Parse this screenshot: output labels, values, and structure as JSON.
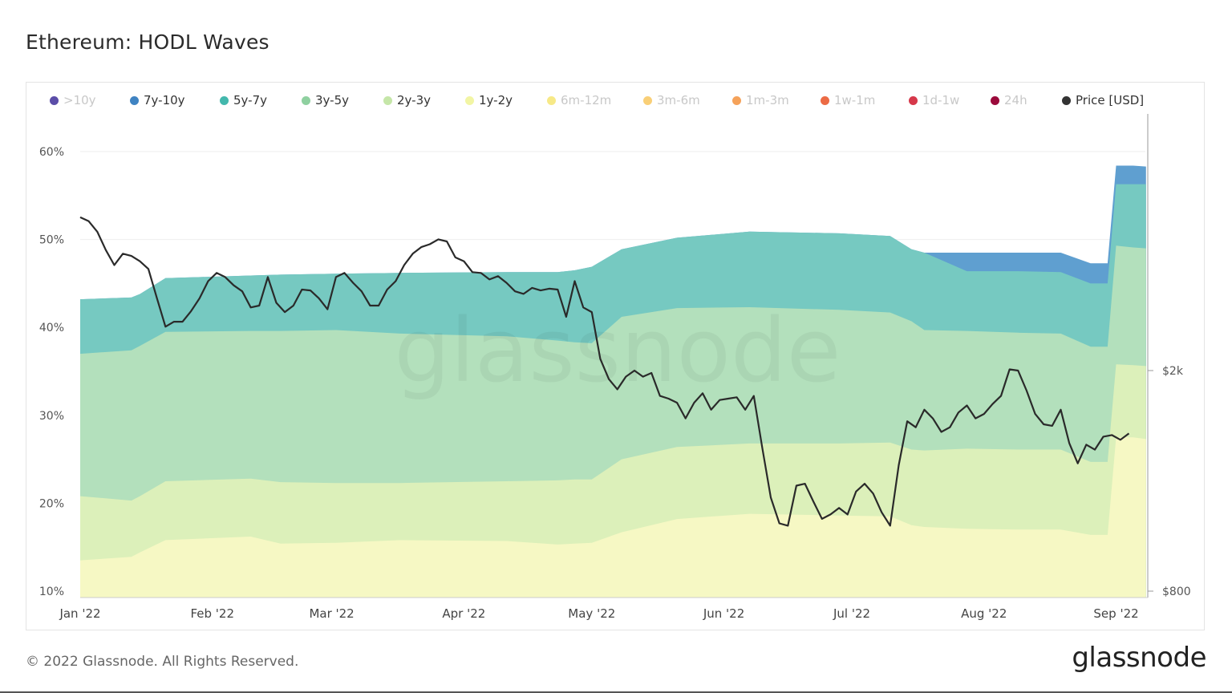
{
  "header": {
    "title": "Ethereum: HODL Waves"
  },
  "footer": {
    "copyright": "© 2022 Glassnode. All Rights Reserved.",
    "brand": "glassnode",
    "watermark": "glassnode"
  },
  "legend": [
    {
      "label": ">10y",
      "color": "#5b4da8",
      "active": false
    },
    {
      "label": "7y-10y",
      "color": "#3f83c2",
      "active": true
    },
    {
      "label": "5y-7y",
      "color": "#43b8ad",
      "active": true
    },
    {
      "label": "3y-5y",
      "color": "#8fd0a0",
      "active": true
    },
    {
      "label": "2y-3y",
      "color": "#c5e6a8",
      "active": true
    },
    {
      "label": "1y-2y",
      "color": "#f2f5a4",
      "active": true
    },
    {
      "label": "6m-12m",
      "color": "#f7e987",
      "active": false
    },
    {
      "label": "3m-6m",
      "color": "#f9cf77",
      "active": false
    },
    {
      "label": "1m-3m",
      "color": "#f5a25a",
      "active": false
    },
    {
      "label": "1w-1m",
      "color": "#ec6b45",
      "active": false
    },
    {
      "label": "1d-1w",
      "color": "#d6384a",
      "active": false
    },
    {
      "label": "24h",
      "color": "#9b0a3b",
      "active": false
    },
    {
      "label": "Price [USD]",
      "color": "#333333",
      "active": true
    }
  ],
  "chart_data": {
    "type": "area",
    "stacked": true,
    "x_ticks": [
      "Jan '22",
      "Feb '22",
      "Mar '22",
      "Apr '22",
      "May '22",
      "Jun '22",
      "Jul '22",
      "Aug '22",
      "Sep '22"
    ],
    "x_tick_days": [
      0,
      31,
      59,
      90,
      120,
      151,
      181,
      212,
      243
    ],
    "y_left": {
      "ticks": [
        "10%",
        "20%",
        "30%",
        "40%",
        "50%",
        "60%"
      ],
      "tick_values": [
        10,
        20,
        30,
        40,
        50,
        60
      ],
      "range": [
        10,
        60
      ]
    },
    "y_right": {
      "ticks": [
        "$2k",
        "$800"
      ],
      "tick_values": [
        2000,
        800
      ],
      "scale": "log"
    },
    "day": [
      0,
      12,
      14,
      20,
      40,
      47,
      60,
      75,
      100,
      112,
      116,
      120,
      127,
      140,
      157,
      178,
      190,
      195,
      198,
      208,
      220,
      230,
      237,
      241,
      243,
      247,
      250
    ],
    "series": [
      {
        "name": "1y-2y",
        "color": "#f6f8c4",
        "cumulative_top": [
          13.5,
          13.9,
          14.4,
          15.8,
          16.2,
          15.4,
          15.5,
          15.8,
          15.7,
          15.3,
          15.4,
          15.5,
          16.7,
          18.2,
          18.8,
          18.6,
          18.5,
          17.5,
          17.3,
          17.1,
          17.0,
          17.0,
          16.4,
          16.4,
          27.5,
          27.5,
          27.3
        ]
      },
      {
        "name": "2y-3y",
        "color": "#dcf0ba",
        "cumulative_top": [
          20.8,
          20.3,
          20.8,
          22.5,
          22.8,
          22.4,
          22.3,
          22.3,
          22.5,
          22.6,
          22.7,
          22.7,
          25.0,
          26.4,
          26.8,
          26.8,
          26.9,
          26.1,
          26.0,
          26.2,
          26.1,
          26.1,
          24.7,
          24.7,
          35.8,
          35.7,
          35.6
        ]
      },
      {
        "name": "3y-5y",
        "color": "#b3e0bc",
        "cumulative_top": [
          37.0,
          37.4,
          37.9,
          39.5,
          39.6,
          39.6,
          39.7,
          39.3,
          39.0,
          38.5,
          38.3,
          38.2,
          41.2,
          42.2,
          42.3,
          42.0,
          41.7,
          40.7,
          39.7,
          39.6,
          39.4,
          39.3,
          37.8,
          37.8,
          49.3,
          49.1,
          49.0
        ]
      },
      {
        "name": "5y-7y",
        "color": "#76c9c1",
        "cumulative_top": [
          43.2,
          43.4,
          43.8,
          45.6,
          45.9,
          46.0,
          46.1,
          46.2,
          46.3,
          46.3,
          46.5,
          46.9,
          48.9,
          50.2,
          50.9,
          50.7,
          50.4,
          48.9,
          48.5,
          46.4,
          46.4,
          46.3,
          45.0,
          45.0,
          56.3,
          56.3,
          56.3
        ]
      },
      {
        "name": "7y-10y",
        "color": "#5f9fd0",
        "cumulative_top": [
          43.2,
          43.4,
          43.8,
          45.6,
          45.9,
          46.0,
          46.1,
          46.2,
          46.3,
          46.3,
          46.5,
          46.9,
          48.9,
          50.2,
          50.9,
          50.7,
          50.4,
          48.9,
          48.5,
          48.5,
          48.5,
          48.5,
          47.3,
          47.3,
          58.4,
          58.4,
          58.3
        ]
      }
    ],
    "price": {
      "name": "Price [USD]",
      "color": "#2a2a2a",
      "day": [
        0,
        2,
        4,
        6,
        8,
        10,
        12,
        14,
        16,
        18,
        20,
        22,
        24,
        26,
        28,
        30,
        32,
        34,
        36,
        38,
        40,
        42,
        44,
        46,
        48,
        50,
        52,
        54,
        56,
        58,
        60,
        62,
        64,
        66,
        68,
        70,
        72,
        74,
        76,
        78,
        80,
        82,
        84,
        86,
        88,
        90,
        92,
        94,
        96,
        98,
        100,
        102,
        104,
        106,
        108,
        110,
        112,
        114,
        116,
        118,
        120,
        122,
        124,
        126,
        128,
        130,
        132,
        134,
        136,
        138,
        140,
        142,
        144,
        146,
        148,
        150,
        152,
        154,
        156,
        158,
        160,
        162,
        164,
        166,
        168,
        170,
        172,
        174,
        176,
        178,
        180,
        182,
        184,
        186,
        188,
        190,
        192,
        194,
        196,
        198,
        200,
        202,
        204,
        206,
        208,
        210,
        212,
        214,
        216,
        218,
        220,
        222,
        224,
        226,
        228,
        230,
        232,
        234,
        236,
        238,
        240,
        242,
        244,
        246
      ],
      "values": [
        3780,
        3720,
        3560,
        3300,
        3100,
        3250,
        3220,
        3150,
        3050,
        2700,
        2400,
        2450,
        2450,
        2560,
        2700,
        2900,
        3000,
        2950,
        2850,
        2780,
        2600,
        2620,
        2950,
        2650,
        2550,
        2620,
        2800,
        2790,
        2700,
        2580,
        2950,
        3000,
        2880,
        2780,
        2620,
        2620,
        2800,
        2900,
        3100,
        3250,
        3340,
        3380,
        3450,
        3420,
        3200,
        3150,
        3010,
        3000,
        2920,
        2960,
        2880,
        2780,
        2750,
        2820,
        2790,
        2810,
        2800,
        2500,
        2900,
        2600,
        2550,
        2100,
        1930,
        1850,
        1950,
        2000,
        1950,
        1980,
        1800,
        1780,
        1750,
        1640,
        1750,
        1820,
        1700,
        1770,
        1780,
        1790,
        1700,
        1800,
        1450,
        1180,
        1060,
        1050,
        1240,
        1250,
        1160,
        1080,
        1100,
        1130,
        1100,
        1210,
        1250,
        1200,
        1110,
        1050,
        1350,
        1620,
        1580,
        1700,
        1640,
        1550,
        1580,
        1680,
        1730,
        1640,
        1670,
        1740,
        1800,
        2010,
        2000,
        1840,
        1670,
        1600,
        1590,
        1700,
        1480,
        1360,
        1470,
        1440,
        1520,
        1530,
        1500,
        1540
      ]
    }
  }
}
